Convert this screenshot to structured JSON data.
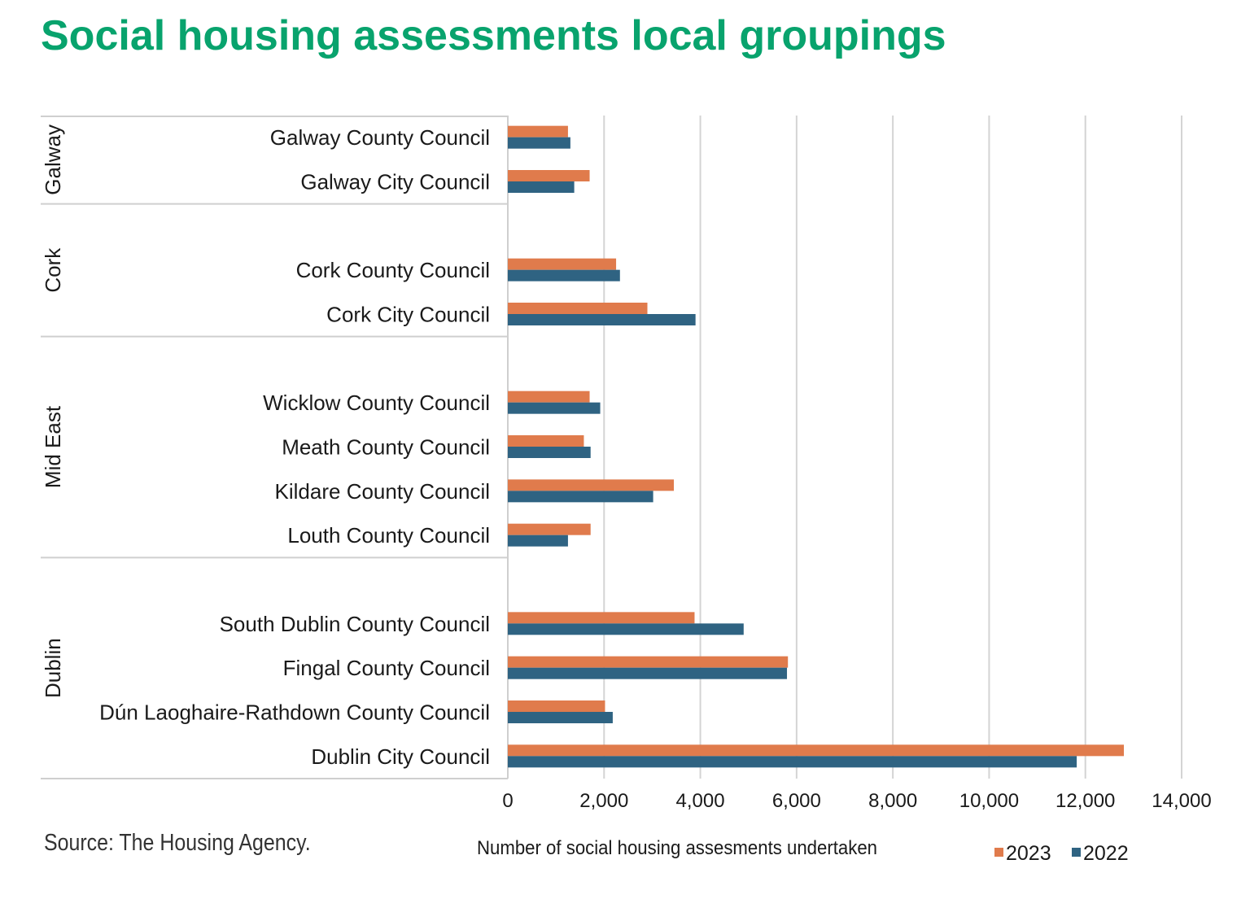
{
  "title": "Social housing assessments local groupings",
  "source": "Source: The Housing Agency.",
  "colors": {
    "title": "#08a36d",
    "s2023": "#e07b4c",
    "s2022": "#2f6382",
    "grid": "#d4d4d4",
    "frame": "#cfcfcf"
  },
  "chart_data": {
    "type": "bar",
    "orientation": "horizontal",
    "title": "Social housing assessments local groupings",
    "xlabel": "Number of social housing assesments undertaken",
    "ylabel": "",
    "xlim": [
      0,
      14000
    ],
    "xticks": [
      "0",
      "2,000",
      "4,000",
      "6,000",
      "8,000",
      "10,000",
      "12,000",
      "14,000"
    ],
    "grid": true,
    "legend_position": "bottom-right",
    "groups": [
      {
        "name": "Galway",
        "categories": [
          "Galway County Council",
          "Galway City Council"
        ]
      },
      {
        "name": "Cork",
        "categories": [
          "Cork County Council",
          "Cork City Council"
        ]
      },
      {
        "name": "Mid East",
        "categories": [
          "Wicklow County Council",
          "Meath County Council",
          "Kildare County Council",
          "Louth County Council"
        ]
      },
      {
        "name": "Dublin",
        "categories": [
          "South Dublin County Council",
          "Fingal County Council",
          "Dún Laoghaire-Rathdown County Council",
          "Dublin City Council"
        ]
      }
    ],
    "series": [
      {
        "name": "2023",
        "values": [
          1250,
          1700,
          2250,
          2900,
          1700,
          1580,
          3450,
          1720,
          3880,
          5820,
          2020,
          12800
        ]
      },
      {
        "name": "2022",
        "values": [
          1300,
          1380,
          2330,
          3900,
          1920,
          1720,
          3020,
          1250,
          4900,
          5800,
          2180,
          11820
        ]
      }
    ]
  }
}
